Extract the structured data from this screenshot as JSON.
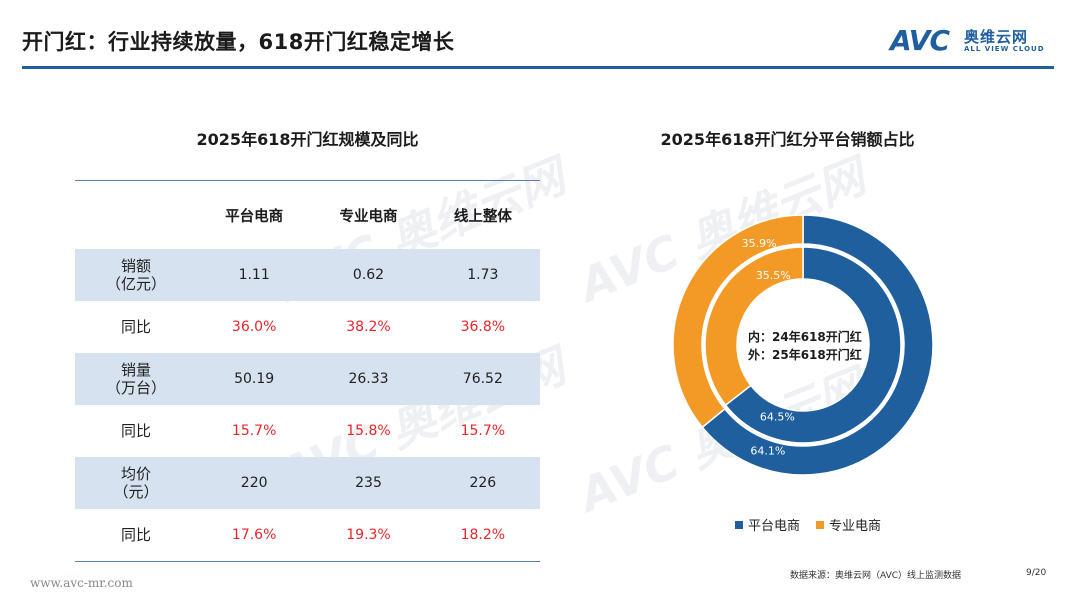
{
  "header": {
    "title": "开门红：行业持续放量，618开门红稳定增长",
    "logo_mark": "AVC",
    "logo_cn": "奥维云网",
    "logo_en": "ALL VIEW CLOUD",
    "accent": "#1f5f9e"
  },
  "table": {
    "title": "2025年618开门红规模及同比",
    "columns": [
      "",
      "平台电商",
      "专业电商",
      "线上整体"
    ],
    "rows": [
      {
        "label_line1": "销额",
        "label_line2": "（亿元）",
        "values": [
          "1.11",
          "0.62",
          "1.73"
        ],
        "shaded": true,
        "red": false
      },
      {
        "label_line1": "同比",
        "label_line2": "",
        "values": [
          "36.0%",
          "38.2%",
          "36.8%"
        ],
        "shaded": false,
        "red": true
      },
      {
        "label_line1": "销量",
        "label_line2": "（万台）",
        "values": [
          "50.19",
          "26.33",
          "76.52"
        ],
        "shaded": true,
        "red": false
      },
      {
        "label_line1": "同比",
        "label_line2": "",
        "values": [
          "15.7%",
          "15.8%",
          "15.7%"
        ],
        "shaded": false,
        "red": true
      },
      {
        "label_line1": "均价",
        "label_line2": "（元）",
        "values": [
          "220",
          "235",
          "226"
        ],
        "shaded": true,
        "red": false
      },
      {
        "label_line1": "同比",
        "label_line2": "",
        "values": [
          "17.6%",
          "19.3%",
          "18.2%"
        ],
        "shaded": false,
        "red": true
      }
    ]
  },
  "chart_data": {
    "type": "pie",
    "title": "2025年618开门红分平台销额占比",
    "center_label_line1": "内：24年618开门红",
    "center_label_line2": "外：25年618开门红",
    "categories": [
      "平台电商",
      "专业电商"
    ],
    "colors": [
      "#1f5f9e",
      "#f39a26"
    ],
    "series": [
      {
        "name": "24年618开门红",
        "ring": "inner",
        "values": [
          64.5,
          35.5
        ],
        "labels": [
          "64.5%",
          "35.5%"
        ]
      },
      {
        "name": "25年618开门红",
        "ring": "outer",
        "values": [
          64.1,
          35.9
        ],
        "labels": [
          "64.1%",
          "35.9%"
        ]
      }
    ],
    "legend_position": "bottom"
  },
  "watermark": "AVC 奥维云网",
  "footer": {
    "url": "www.avc-mr.com",
    "source": "数据来源：奥维云网（AVC）线上监测数据",
    "page": "9/20"
  }
}
